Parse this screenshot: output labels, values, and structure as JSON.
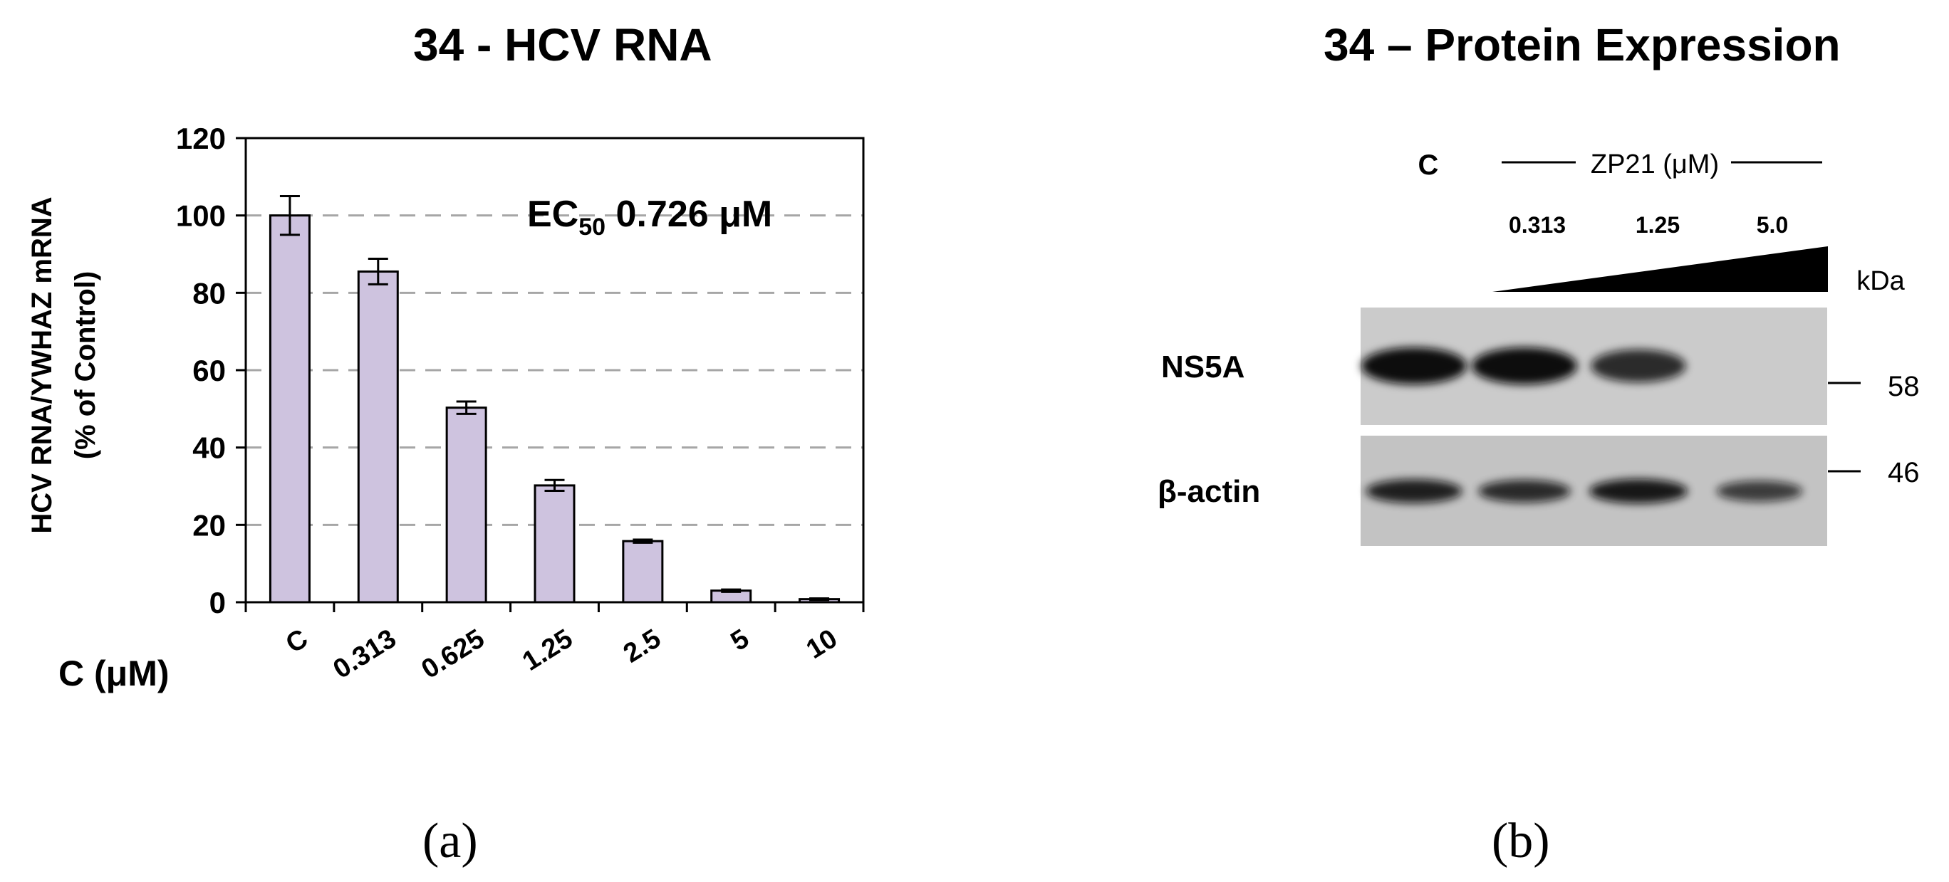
{
  "panels": {
    "a": {
      "title": "34 - HCV RNA",
      "letter": "(a)"
    },
    "b": {
      "title": "34 – Protein Expression",
      "letter": "(b)"
    }
  },
  "chart_data": {
    "type": "bar",
    "title": "34 - HCV RNA",
    "ylabel_line1": "HCV RNA/YWHAZ mRNA",
    "ylabel_line2": "(% of Control)",
    "xlabel": "C (μM)",
    "categories": [
      "C",
      "0.313",
      "0.625",
      "1.25",
      "2.5",
      "5",
      "10"
    ],
    "values": [
      100,
      85.5,
      50.3,
      30.2,
      15.8,
      3.0,
      0.8
    ],
    "errors": [
      5.0,
      3.3,
      1.6,
      1.4,
      0.4,
      0.3,
      0.2
    ],
    "ylim": [
      0,
      120
    ],
    "yticks": [
      0,
      20,
      40,
      60,
      80,
      100,
      120
    ],
    "grid": true,
    "bar_color": "#cec3df",
    "annotation": {
      "prefix": "EC",
      "subscript": "50",
      "value": " 0.726 μM"
    }
  },
  "blot": {
    "control_label": "C",
    "treatment_label": "ZP21 (μM)",
    "concentrations": [
      "0.313",
      "1.25",
      "5.0"
    ],
    "unit_label": "kDa",
    "rows": [
      {
        "protein": "NS5A",
        "marker": "58",
        "band_intensity": [
          1.0,
          1.0,
          0.75,
          0.0
        ]
      },
      {
        "protein": "β-actin",
        "marker": "46",
        "band_intensity": [
          0.85,
          0.75,
          0.9,
          0.6
        ]
      }
    ]
  }
}
